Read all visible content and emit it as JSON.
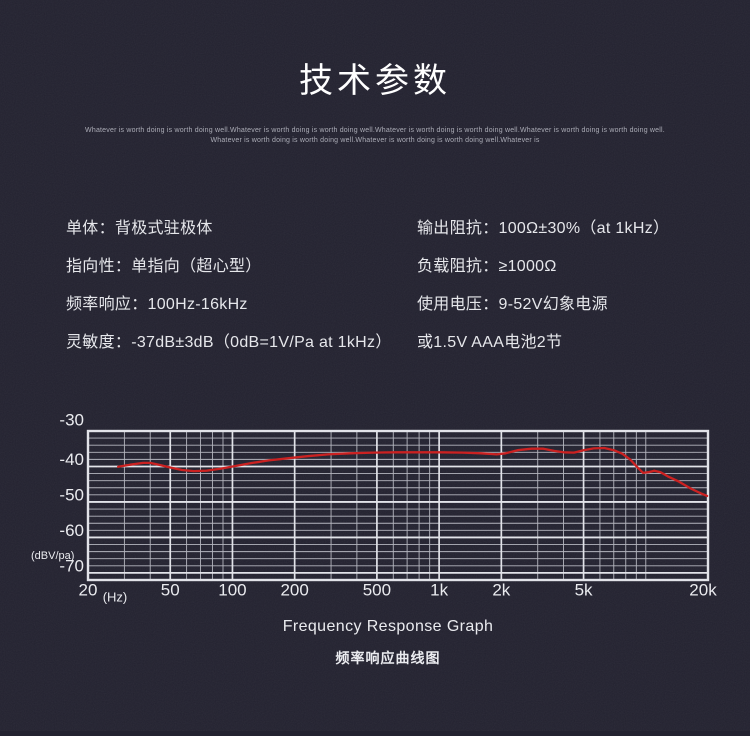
{
  "page": {
    "background": "#232230"
  },
  "header": {
    "title": "技术参数",
    "slogan_line1": "Whatever is worth doing is worth doing well.Whatever is worth doing is worth doing well.Whatever is worth doing is worth doing well.Whatever is worth doing is worth doing well.",
    "slogan_line2": "Whatever is worth doing is worth doing well.Whatever is worth doing is worth doing well.Whatever is"
  },
  "specs": {
    "left_rows": [
      "单体：背极式驻极体",
      "指向性：单指向（超心型）",
      "频率响应：100Hz-16kHz",
      "灵敏度：-37dB±3dB（0dB=1V/Pa at 1kHz）"
    ],
    "right_rows": [
      "输出阻抗：100Ω±30%（at 1kHz）",
      "负载阻抗：≥1000Ω",
      "使用电压：9-52V幻象电源",
      "或1.5V AAA电池2节"
    ]
  },
  "chart_data": {
    "type": "line",
    "title_en": "Frequency Response Graph",
    "title_zh": "频率响应曲线图",
    "grid": "on",
    "colors": {
      "curve": "#cb2121",
      "grid_minor": "#b5b6bf",
      "grid_major": "#e2e3e9",
      "labels": "#eaebef"
    },
    "x_axis": {
      "scale": "log",
      "min": 20,
      "max": 20000,
      "unit_label": "(Hz)",
      "tick_values": [
        20,
        50,
        100,
        200,
        500,
        1000,
        2000,
        5000,
        20000
      ],
      "tick_labels": [
        "20",
        "50",
        "100",
        "200",
        "500",
        "1k",
        "2k",
        "5k",
        "20k"
      ]
    },
    "y_axis": {
      "min": -72,
      "max": -30,
      "unit_label": "(dBV/pa)",
      "tick_values": [
        -30,
        -40,
        -50,
        -60,
        -70
      ],
      "tick_labels": [
        "-30",
        "-40",
        "-50",
        "-60",
        "-70"
      ],
      "minor_step": 2
    },
    "series": [
      {
        "name": "frequency-response",
        "points": [
          [
            28,
            -40.1
          ],
          [
            32,
            -39.5
          ],
          [
            37,
            -39.0
          ],
          [
            40,
            -39.0
          ],
          [
            44,
            -39.5
          ],
          [
            50,
            -40.3
          ],
          [
            57,
            -41.0
          ],
          [
            65,
            -41.3
          ],
          [
            75,
            -41.2
          ],
          [
            88,
            -40.6
          ],
          [
            105,
            -39.8
          ],
          [
            125,
            -39.0
          ],
          [
            150,
            -38.3
          ],
          [
            185,
            -37.7
          ],
          [
            230,
            -37.1
          ],
          [
            290,
            -36.6
          ],
          [
            370,
            -36.3
          ],
          [
            480,
            -36.1
          ],
          [
            620,
            -36.0
          ],
          [
            800,
            -36.0
          ],
          [
            1000,
            -36.0
          ],
          [
            1300,
            -36.1
          ],
          [
            1600,
            -36.3
          ],
          [
            1900,
            -36.6
          ],
          [
            2100,
            -36.3
          ],
          [
            2400,
            -35.4
          ],
          [
            2800,
            -35.0
          ],
          [
            3200,
            -35.0
          ],
          [
            3600,
            -35.6
          ],
          [
            4000,
            -36.0
          ],
          [
            4500,
            -36.1
          ],
          [
            5000,
            -35.4
          ],
          [
            5600,
            -34.9
          ],
          [
            6300,
            -34.8
          ],
          [
            7000,
            -35.4
          ],
          [
            7700,
            -36.4
          ],
          [
            8400,
            -38.0
          ],
          [
            9100,
            -40.2
          ],
          [
            9700,
            -41.8
          ],
          [
            10300,
            -41.6
          ],
          [
            11000,
            -41.2
          ],
          [
            11800,
            -41.6
          ],
          [
            12800,
            -42.8
          ],
          [
            14500,
            -44.3
          ],
          [
            16500,
            -46.2
          ],
          [
            18500,
            -47.6
          ],
          [
            19800,
            -48.3
          ]
        ]
      }
    ]
  }
}
